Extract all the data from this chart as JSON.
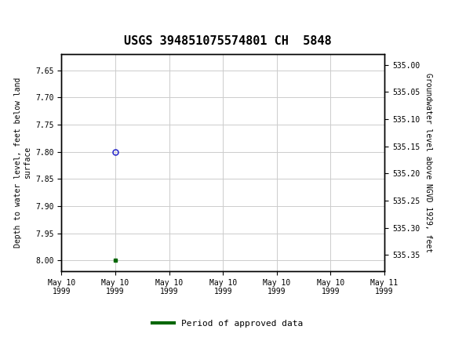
{
  "title": "USGS 394851075574801 CH  5848",
  "ylabel_left": "Depth to water level, feet below land\nsurface",
  "ylabel_right": "Groundwater level above NGVD 1929, feet",
  "ylim_left": [
    7.62,
    8.02
  ],
  "ylim_right": [
    535.38,
    534.98
  ],
  "yticks_left": [
    7.65,
    7.7,
    7.75,
    7.8,
    7.85,
    7.9,
    7.95,
    8.0
  ],
  "yticks_right": [
    535.35,
    535.3,
    535.25,
    535.2,
    535.15,
    535.1,
    535.05,
    535.0
  ],
  "ytick_labels_right": [
    "535.35",
    "535.30",
    "535.25",
    "535.20",
    "535.15",
    "535.10",
    "535.05",
    "535.00"
  ],
  "xtick_labels": [
    "May 10\n1999",
    "May 10\n1999",
    "May 10\n1999",
    "May 10\n1999",
    "May 10\n1999",
    "May 10\n1999",
    "May 11\n1999"
  ],
  "data_point_x": 1.0,
  "data_point_y": 7.8,
  "data_point_color": "#3333cc",
  "data_point_marker": "o",
  "data_point_marker_size": 5,
  "approved_x": 1.0,
  "approved_y": 8.0,
  "approved_color": "#006600",
  "approved_marker": "s",
  "approved_marker_size": 3.5,
  "header_bg_color": "#1a7040",
  "header_text_color": "#ffffff",
  "grid_color": "#cccccc",
  "background_color": "#ffffff",
  "plot_bg_color": "#ffffff",
  "legend_label": "Period of approved data",
  "legend_color": "#006600",
  "x_range": [
    0,
    6
  ],
  "title_fontsize": 11,
  "tick_fontsize": 7,
  "ylabel_fontsize": 7
}
